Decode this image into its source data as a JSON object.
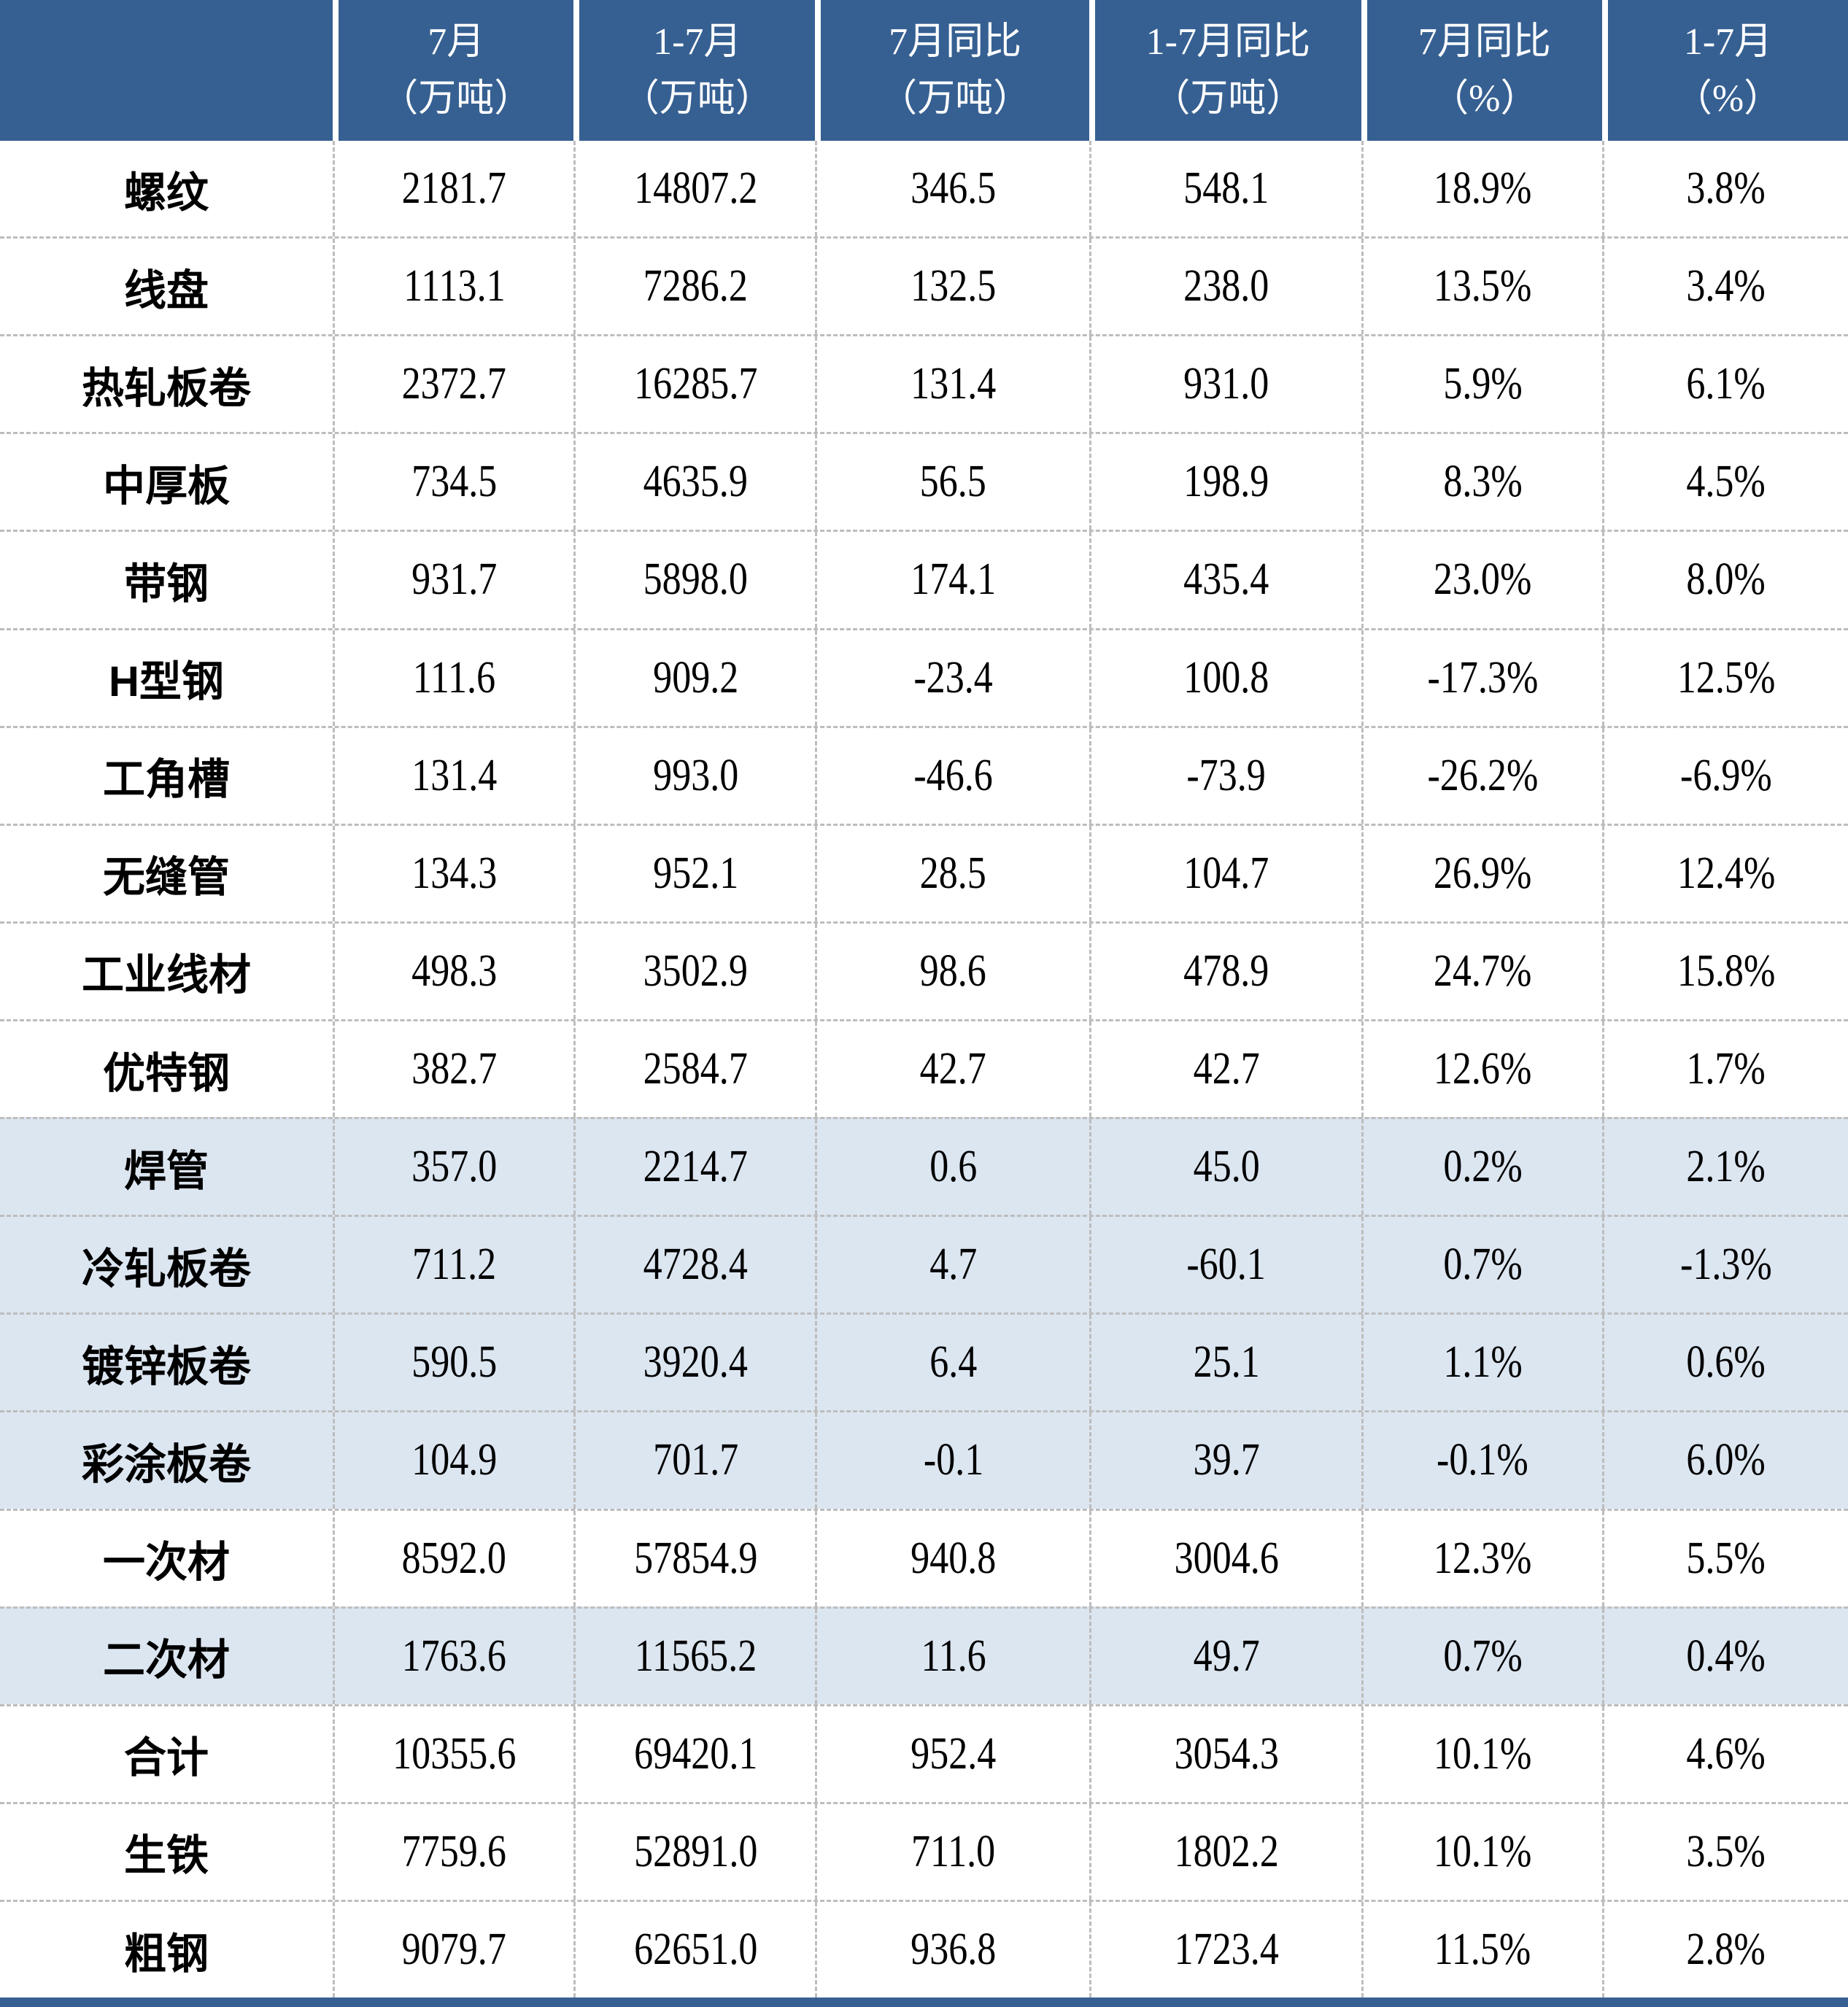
{
  "chart_data": {
    "type": "table",
    "header": [
      {
        "line1": "",
        "line2": ""
      },
      {
        "line1": "7月",
        "line2": "（万吨）"
      },
      {
        "line1": "1-7月",
        "line2": "（万吨）"
      },
      {
        "line1": "7月同比",
        "line2": "（万吨）"
      },
      {
        "line1": "1-7月同比",
        "line2": "（万吨）"
      },
      {
        "line1": "7月同比",
        "line2": "（%）"
      },
      {
        "line1": "1-7月",
        "line2": "（%）"
      }
    ],
    "columns_flat": [
      "7月（万吨）",
      "1-7月（万吨）",
      "7月同比（万吨）",
      "1-7月同比（万吨）",
      "7月同比（%）",
      "1-7月（%）"
    ],
    "rows": [
      {
        "label": "螺纹",
        "values": [
          "2181.7",
          "14807.2",
          "346.5",
          "548.1",
          "18.9%",
          "3.8%"
        ],
        "highlight": false
      },
      {
        "label": "线盘",
        "values": [
          "1113.1",
          "7286.2",
          "132.5",
          "238.0",
          "13.5%",
          "3.4%"
        ],
        "highlight": false
      },
      {
        "label": "热轧板卷",
        "values": [
          "2372.7",
          "16285.7",
          "131.4",
          "931.0",
          "5.9%",
          "6.1%"
        ],
        "highlight": false
      },
      {
        "label": "中厚板",
        "values": [
          "734.5",
          "4635.9",
          "56.5",
          "198.9",
          "8.3%",
          "4.5%"
        ],
        "highlight": false
      },
      {
        "label": "带钢",
        "values": [
          "931.7",
          "5898.0",
          "174.1",
          "435.4",
          "23.0%",
          "8.0%"
        ],
        "highlight": false
      },
      {
        "label": "H型钢",
        "values": [
          "111.6",
          "909.2",
          "-23.4",
          "100.8",
          "-17.3%",
          "12.5%"
        ],
        "highlight": false
      },
      {
        "label": "工角槽",
        "values": [
          "131.4",
          "993.0",
          "-46.6",
          "-73.9",
          "-26.2%",
          "-6.9%"
        ],
        "highlight": false
      },
      {
        "label": "无缝管",
        "values": [
          "134.3",
          "952.1",
          "28.5",
          "104.7",
          "26.9%",
          "12.4%"
        ],
        "highlight": false
      },
      {
        "label": "工业线材",
        "values": [
          "498.3",
          "3502.9",
          "98.6",
          "478.9",
          "24.7%",
          "15.8%"
        ],
        "highlight": false
      },
      {
        "label": "优特钢",
        "values": [
          "382.7",
          "2584.7",
          "42.7",
          "42.7",
          "12.6%",
          "1.7%"
        ],
        "highlight": false
      },
      {
        "label": "焊管",
        "values": [
          "357.0",
          "2214.7",
          "0.6",
          "45.0",
          "0.2%",
          "2.1%"
        ],
        "highlight": true
      },
      {
        "label": "冷轧板卷",
        "values": [
          "711.2",
          "4728.4",
          "4.7",
          "-60.1",
          "0.7%",
          "-1.3%"
        ],
        "highlight": true
      },
      {
        "label": "镀锌板卷",
        "values": [
          "590.5",
          "3920.4",
          "6.4",
          "25.1",
          "1.1%",
          "0.6%"
        ],
        "highlight": true
      },
      {
        "label": "彩涂板卷",
        "values": [
          "104.9",
          "701.7",
          "-0.1",
          "39.7",
          "-0.1%",
          "6.0%"
        ],
        "highlight": true
      },
      {
        "label": "一次材",
        "values": [
          "8592.0",
          "57854.9",
          "940.8",
          "3004.6",
          "12.3%",
          "5.5%"
        ],
        "highlight": false
      },
      {
        "label": "二次材",
        "values": [
          "1763.6",
          "11565.2",
          "11.6",
          "49.7",
          "0.7%",
          "0.4%"
        ],
        "highlight": true
      },
      {
        "label": "合计",
        "values": [
          "10355.6",
          "69420.1",
          "952.4",
          "3054.3",
          "10.1%",
          "4.6%"
        ],
        "highlight": false
      },
      {
        "label": "生铁",
        "values": [
          "7759.6",
          "52891.0",
          "711.0",
          "1802.2",
          "10.1%",
          "3.5%"
        ],
        "highlight": false
      },
      {
        "label": "粗钢",
        "values": [
          "9079.7",
          "62651.0",
          "936.8",
          "1723.4",
          "11.5%",
          "2.8%"
        ],
        "highlight": false
      }
    ],
    "colors": {
      "header_bg": "#366092",
      "header_text": "#ffffff",
      "band_bg": "#dce6f1",
      "grid": "#bdbdbd",
      "body_text": "#000000",
      "bottom_bar": "#366092"
    },
    "layout": {
      "grid": "dashed",
      "legend": "none",
      "title": ""
    }
  }
}
